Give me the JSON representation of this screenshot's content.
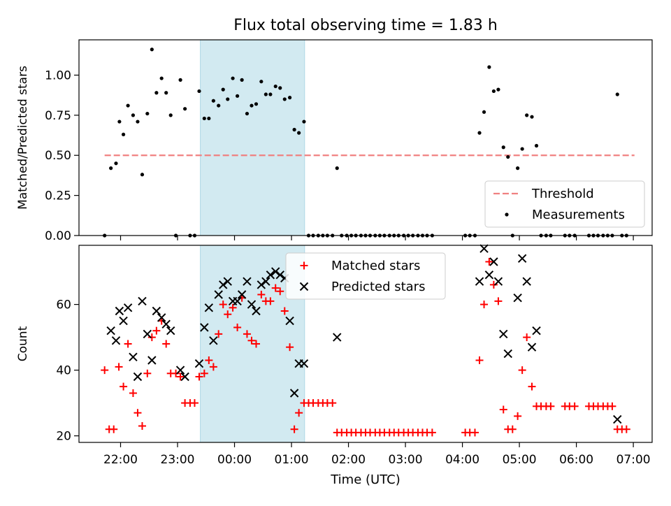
{
  "chart_data": {
    "type": "scatter",
    "title": "Flux total observing time = 1.83 h",
    "xlabel": "Time (UTC)",
    "x_tick_labels": [
      "22:00",
      "23:00",
      "00:00",
      "01:00",
      "02:00",
      "03:00",
      "04:00",
      "05:00",
      "06:00",
      "07:00"
    ],
    "x_tick_hours": [
      22,
      23,
      24,
      25,
      26,
      27,
      28,
      29,
      30,
      31
    ],
    "x_range_hours": [
      21.27,
      31.33
    ],
    "highlight_span_hours": [
      23.4,
      25.23
    ],
    "colors": {
      "measurements": "#000000",
      "threshold": "#f08080",
      "matched": "#ff0000",
      "predicted": "#000000",
      "highlight": "#add8e6"
    },
    "top": {
      "ylabel": "Matched/Predicted stars",
      "ylim": [
        0,
        1.22
      ],
      "y_ticks": [
        "0.00",
        "0.25",
        "0.50",
        "0.75",
        "1.00"
      ],
      "y_tick_values": [
        0,
        0.25,
        0.5,
        0.75,
        1.0
      ],
      "threshold": {
        "name": "Threshold",
        "value": 0.5,
        "x_start": 21.72,
        "x_end": 31.02
      },
      "measurements_name": "Measurements",
      "legend_position": "lower-right",
      "measurements": [
        [
          21.72,
          0.0
        ],
        [
          21.83,
          0.42
        ],
        [
          21.92,
          0.45
        ],
        [
          21.98,
          0.71
        ],
        [
          22.05,
          0.63
        ],
        [
          22.13,
          0.81
        ],
        [
          22.22,
          0.75
        ],
        [
          22.3,
          0.71
        ],
        [
          22.38,
          0.38
        ],
        [
          22.47,
          0.76
        ],
        [
          22.55,
          1.16
        ],
        [
          22.63,
          0.89
        ],
        [
          22.72,
          0.98
        ],
        [
          22.8,
          0.89
        ],
        [
          22.88,
          0.75
        ],
        [
          22.97,
          0.0
        ],
        [
          23.05,
          0.97
        ],
        [
          23.13,
          0.79
        ],
        [
          23.22,
          0.0
        ],
        [
          23.3,
          0.0
        ],
        [
          23.38,
          0.9
        ],
        [
          23.47,
          0.73
        ],
        [
          23.55,
          0.73
        ],
        [
          23.63,
          0.84
        ],
        [
          23.72,
          0.81
        ],
        [
          23.8,
          0.91
        ],
        [
          23.88,
          0.85
        ],
        [
          23.97,
          0.98
        ],
        [
          24.05,
          0.87
        ],
        [
          24.13,
          0.97
        ],
        [
          24.22,
          0.76
        ],
        [
          24.3,
          0.81
        ],
        [
          24.38,
          0.82
        ],
        [
          24.47,
          0.96
        ],
        [
          24.55,
          0.88
        ],
        [
          24.63,
          0.88
        ],
        [
          24.72,
          0.93
        ],
        [
          24.8,
          0.92
        ],
        [
          24.88,
          0.85
        ],
        [
          24.97,
          0.86
        ],
        [
          25.05,
          0.66
        ],
        [
          25.13,
          0.64
        ],
        [
          25.22,
          0.71
        ],
        [
          25.3,
          0.0
        ],
        [
          25.38,
          0.0
        ],
        [
          25.47,
          0.0
        ],
        [
          25.55,
          0.0
        ],
        [
          25.63,
          0.0
        ],
        [
          25.72,
          0.0
        ],
        [
          25.8,
          0.42
        ],
        [
          25.88,
          0.0
        ],
        [
          25.97,
          0.0
        ],
        [
          26.05,
          0.0
        ],
        [
          26.13,
          0.0
        ],
        [
          26.22,
          0.0
        ],
        [
          26.3,
          0.0
        ],
        [
          26.38,
          0.0
        ],
        [
          26.47,
          0.0
        ],
        [
          26.55,
          0.0
        ],
        [
          26.63,
          0.0
        ],
        [
          26.72,
          0.0
        ],
        [
          26.8,
          0.0
        ],
        [
          26.88,
          0.0
        ],
        [
          26.97,
          0.0
        ],
        [
          27.05,
          0.0
        ],
        [
          27.13,
          0.0
        ],
        [
          27.22,
          0.0
        ],
        [
          27.3,
          0.0
        ],
        [
          27.38,
          0.0
        ],
        [
          27.47,
          0.0
        ],
        [
          28.05,
          0.0
        ],
        [
          28.13,
          0.0
        ],
        [
          28.22,
          0.0
        ],
        [
          28.3,
          0.64
        ],
        [
          28.38,
          0.77
        ],
        [
          28.47,
          1.05
        ],
        [
          28.55,
          0.9
        ],
        [
          28.63,
          0.91
        ],
        [
          28.72,
          0.55
        ],
        [
          28.8,
          0.49
        ],
        [
          28.88,
          0.0
        ],
        [
          28.97,
          0.42
        ],
        [
          29.05,
          0.54
        ],
        [
          29.13,
          0.75
        ],
        [
          29.22,
          0.74
        ],
        [
          29.3,
          0.56
        ],
        [
          29.38,
          0.0
        ],
        [
          29.47,
          0.0
        ],
        [
          29.55,
          0.0
        ],
        [
          29.8,
          0.0
        ],
        [
          29.88,
          0.0
        ],
        [
          29.97,
          0.0
        ],
        [
          30.22,
          0.0
        ],
        [
          30.3,
          0.0
        ],
        [
          30.38,
          0.0
        ],
        [
          30.47,
          0.0
        ],
        [
          30.55,
          0.0
        ],
        [
          30.63,
          0.0
        ],
        [
          30.72,
          0.88
        ],
        [
          30.8,
          0.0
        ],
        [
          30.88,
          0.0
        ]
      ]
    },
    "bottom": {
      "ylabel": "Count",
      "ylim": [
        18,
        78
      ],
      "y_ticks": [
        "20",
        "40",
        "60"
      ],
      "y_tick_values": [
        20,
        40,
        60
      ],
      "legend_position": "upper-center",
      "series": [
        {
          "name": "Matched stars",
          "marker": "plus",
          "points": [
            [
              21.72,
              40
            ],
            [
              21.8,
              22
            ],
            [
              21.88,
              22
            ],
            [
              21.97,
              41
            ],
            [
              22.05,
              35
            ],
            [
              22.13,
              48
            ],
            [
              22.22,
              33
            ],
            [
              22.3,
              27
            ],
            [
              22.38,
              23
            ],
            [
              22.47,
              39
            ],
            [
              22.55,
              50
            ],
            [
              22.63,
              52
            ],
            [
              22.72,
              55
            ],
            [
              22.8,
              48
            ],
            [
              22.88,
              39
            ],
            [
              22.97,
              39
            ],
            [
              23.05,
              38
            ],
            [
              23.13,
              30
            ],
            [
              23.22,
              30
            ],
            [
              23.3,
              30
            ],
            [
              23.38,
              38
            ],
            [
              23.47,
              39
            ],
            [
              23.55,
              43
            ],
            [
              23.63,
              41
            ],
            [
              23.72,
              51
            ],
            [
              23.8,
              60
            ],
            [
              23.88,
              57
            ],
            [
              23.97,
              59
            ],
            [
              24.05,
              53
            ],
            [
              24.13,
              62
            ],
            [
              24.22,
              51
            ],
            [
              24.3,
              49
            ],
            [
              24.38,
              48
            ],
            [
              24.47,
              63
            ],
            [
              24.55,
              61
            ],
            [
              24.63,
              61
            ],
            [
              24.72,
              65
            ],
            [
              24.8,
              64
            ],
            [
              24.88,
              58
            ],
            [
              24.97,
              47
            ],
            [
              25.05,
              22
            ],
            [
              25.13,
              27
            ],
            [
              25.22,
              30
            ],
            [
              25.3,
              30
            ],
            [
              25.38,
              30
            ],
            [
              25.47,
              30
            ],
            [
              25.55,
              30
            ],
            [
              25.63,
              30
            ],
            [
              25.72,
              30
            ],
            [
              25.8,
              21
            ],
            [
              25.88,
              21
            ],
            [
              25.97,
              21
            ],
            [
              26.05,
              21
            ],
            [
              26.13,
              21
            ],
            [
              26.22,
              21
            ],
            [
              26.3,
              21
            ],
            [
              26.38,
              21
            ],
            [
              26.47,
              21
            ],
            [
              26.55,
              21
            ],
            [
              26.63,
              21
            ],
            [
              26.72,
              21
            ],
            [
              26.8,
              21
            ],
            [
              26.88,
              21
            ],
            [
              26.97,
              21
            ],
            [
              27.05,
              21
            ],
            [
              27.13,
              21
            ],
            [
              27.22,
              21
            ],
            [
              27.3,
              21
            ],
            [
              27.38,
              21
            ],
            [
              27.47,
              21
            ],
            [
              28.05,
              21
            ],
            [
              28.13,
              21
            ],
            [
              28.22,
              21
            ],
            [
              28.3,
              43
            ],
            [
              28.38,
              60
            ],
            [
              28.47,
              73
            ],
            [
              28.55,
              66
            ],
            [
              28.63,
              61
            ],
            [
              28.72,
              28
            ],
            [
              28.8,
              22
            ],
            [
              28.88,
              22
            ],
            [
              28.97,
              26
            ],
            [
              29.05,
              40
            ],
            [
              29.13,
              50
            ],
            [
              29.22,
              35
            ],
            [
              29.3,
              29
            ],
            [
              29.38,
              29
            ],
            [
              29.47,
              29
            ],
            [
              29.55,
              29
            ],
            [
              29.8,
              29
            ],
            [
              29.88,
              29
            ],
            [
              29.97,
              29
            ],
            [
              30.22,
              29
            ],
            [
              30.3,
              29
            ],
            [
              30.38,
              29
            ],
            [
              30.47,
              29
            ],
            [
              30.55,
              29
            ],
            [
              30.63,
              29
            ],
            [
              30.72,
              22
            ],
            [
              30.8,
              22
            ],
            [
              30.88,
              22
            ]
          ]
        },
        {
          "name": "Predicted stars",
          "marker": "x",
          "points": [
            [
              21.83,
              52
            ],
            [
              21.92,
              49
            ],
            [
              21.98,
              58
            ],
            [
              22.05,
              55
            ],
            [
              22.13,
              59
            ],
            [
              22.22,
              44
            ],
            [
              22.3,
              38
            ],
            [
              22.38,
              61
            ],
            [
              22.47,
              51
            ],
            [
              22.55,
              43
            ],
            [
              22.63,
              58
            ],
            [
              22.72,
              56
            ],
            [
              22.8,
              54
            ],
            [
              22.88,
              52
            ],
            [
              23.05,
              40
            ],
            [
              23.13,
              38
            ],
            [
              23.38,
              42
            ],
            [
              23.47,
              53
            ],
            [
              23.55,
              59
            ],
            [
              23.63,
              49
            ],
            [
              23.72,
              63
            ],
            [
              23.8,
              66
            ],
            [
              23.88,
              67
            ],
            [
              23.97,
              61
            ],
            [
              24.05,
              61
            ],
            [
              24.13,
              63
            ],
            [
              24.22,
              67
            ],
            [
              24.3,
              60
            ],
            [
              24.38,
              58
            ],
            [
              24.47,
              66
            ],
            [
              24.55,
              67
            ],
            [
              24.63,
              69
            ],
            [
              24.72,
              70
            ],
            [
              24.8,
              69
            ],
            [
              24.88,
              68
            ],
            [
              24.97,
              55
            ],
            [
              25.05,
              33
            ],
            [
              25.13,
              42
            ],
            [
              25.22,
              42
            ],
            [
              25.8,
              50
            ],
            [
              28.3,
              67
            ],
            [
              28.38,
              77
            ],
            [
              28.47,
              69
            ],
            [
              28.55,
              73
            ],
            [
              28.63,
              67
            ],
            [
              28.72,
              51
            ],
            [
              28.8,
              45
            ],
            [
              28.97,
              62
            ],
            [
              29.05,
              74
            ],
            [
              29.13,
              67
            ],
            [
              29.22,
              47
            ],
            [
              29.3,
              52
            ],
            [
              30.72,
              25
            ]
          ]
        }
      ]
    }
  }
}
